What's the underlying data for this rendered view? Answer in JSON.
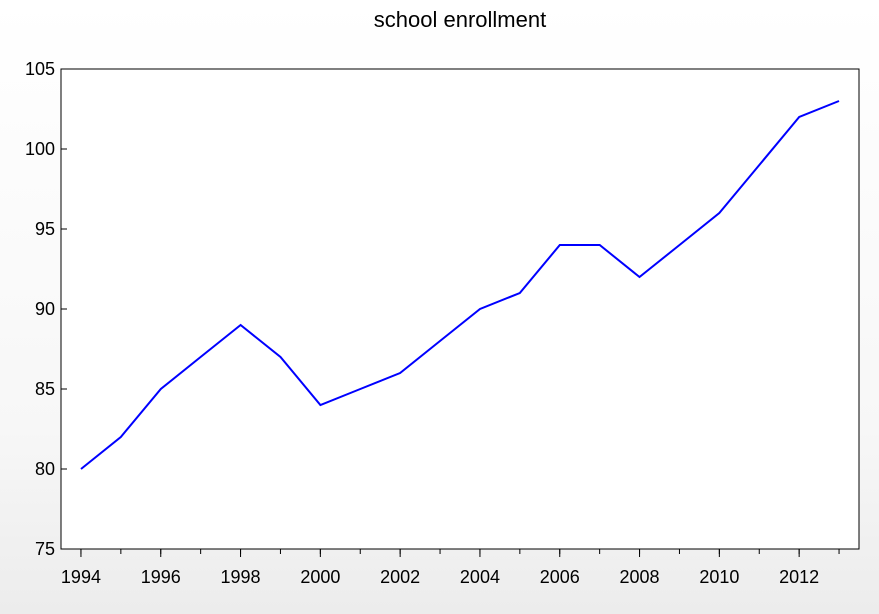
{
  "chart_data": {
    "type": "line",
    "title": "school enrollment",
    "xlabel": "",
    "ylabel": "",
    "x": [
      1994,
      1995,
      1996,
      1997,
      1998,
      1999,
      2000,
      2001,
      2002,
      2003,
      2004,
      2005,
      2006,
      2007,
      2008,
      2009,
      2010,
      2011,
      2012,
      2013
    ],
    "series": [
      {
        "values": [
          80,
          82,
          85,
          87,
          89,
          87,
          84,
          85,
          86,
          88,
          90,
          91,
          94,
          94,
          92,
          94,
          96,
          99,
          102,
          103
        ],
        "color": "#0000ff"
      }
    ],
    "xlim": [
      1993.5,
      2013.5
    ],
    "ylim": [
      75,
      105
    ],
    "xticks": [
      1994,
      1996,
      1998,
      2000,
      2002,
      2004,
      2006,
      2008,
      2010,
      2012
    ],
    "xtick_labels": [
      "1994",
      "1996",
      "1998",
      "2000",
      "2002",
      "2004",
      "2006",
      "2008",
      "2010",
      "2012"
    ],
    "yticks": [
      75,
      80,
      85,
      90,
      95,
      100,
      105
    ],
    "ytick_labels": [
      "75",
      "80",
      "85",
      "90",
      "95",
      "100",
      "105"
    ],
    "grid": false,
    "legend": "none"
  }
}
